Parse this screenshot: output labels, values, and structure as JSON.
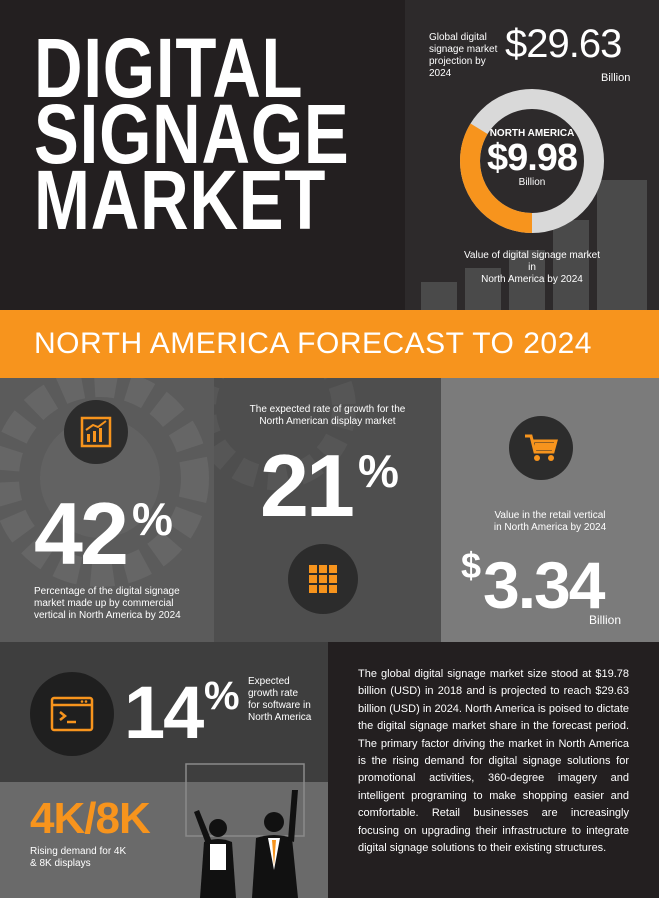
{
  "header": {
    "title_lines": [
      "DIGITAL",
      "SIGNAGE",
      "MARKET"
    ]
  },
  "global": {
    "label_lines": [
      "Global digital",
      "signage market",
      "projection by",
      "2024"
    ],
    "value": "$29.63",
    "unit": "Billion"
  },
  "north_america_ring": {
    "region": "NORTH AMERICA",
    "value": "$9.98",
    "unit": "Billion",
    "share_fraction": 0.337,
    "caption_lines": [
      "Value of digital signage market in",
      "North America by 2024"
    ]
  },
  "banner": {
    "text": "NORTH AMERICA FORECAST TO 2024"
  },
  "commercial": {
    "value": "42",
    "percent": "%",
    "caption_lines": [
      "Percentage of the digital signage",
      "market made up by commercial",
      "vertical in North America by 2024"
    ],
    "icon": "bar-chart-growth-icon"
  },
  "display": {
    "caption_lines": [
      "The expected rate of growth for the",
      "North American display market"
    ],
    "value": "21",
    "percent": "%",
    "icon": "grid-display-icon"
  },
  "retail": {
    "caption_lines": [
      "Value in the retail vertical",
      "in North America by 2024"
    ],
    "dollar": "$",
    "value": "3.34",
    "unit": "Billion",
    "icon": "shopping-cart-icon"
  },
  "software": {
    "value": "14",
    "percent": "%",
    "caption_lines": [
      "Expected",
      "growth rate",
      "for software in",
      "North America"
    ],
    "icon": "terminal-window-icon"
  },
  "displays4k": {
    "value": "4K/8K",
    "caption_lines": [
      "Rising demand for 4K",
      "& 8K displays"
    ]
  },
  "summary": {
    "text": "The global digital signage market size stood at $19.78 billion (USD) in 2018 and is projected to reach $29.63 billion (USD) in 2024. North America is poised to dictate the digital signage market share in the forecast period.  The primary factor driving the market in North America is the rising demand for digital signage solutions for promotional activities, 360-degree imagery and intelligent programing to make shopping easier and comfortable.  Retail businesses are increasingly focusing on upgrading their infrastructure to integrate digital signage solutions to their existing structures."
  },
  "colors": {
    "accent": "#f7941d",
    "dark": "#231f20",
    "mid_gray": "#5a5a5a",
    "light_gray": "#7a7a7a"
  }
}
